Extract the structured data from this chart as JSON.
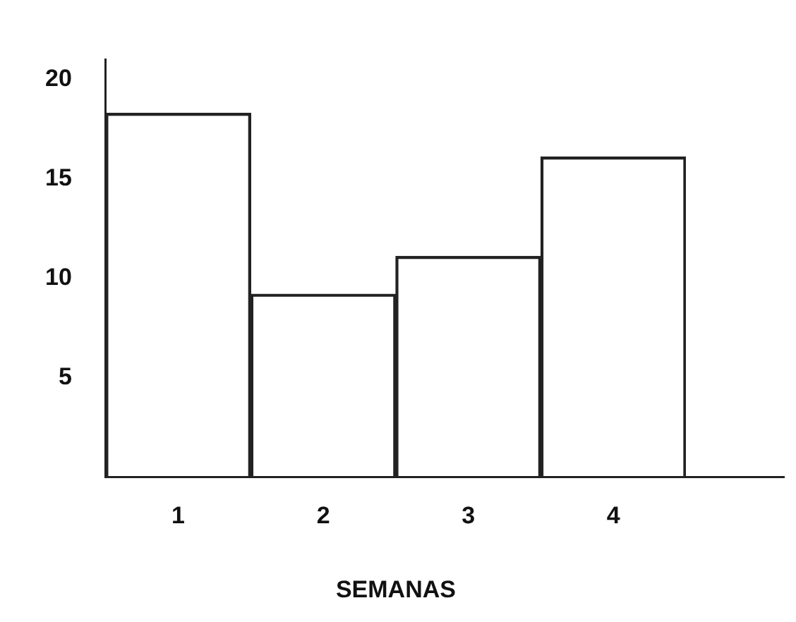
{
  "chart_data": {
    "type": "bar",
    "xlabel": "SEMANAS",
    "categories": [
      "1",
      "2",
      "3",
      "4"
    ],
    "series": [
      {
        "color": "#222222",
        "values": [
          18.3,
          9.2,
          11.1,
          16.1
        ]
      }
    ],
    "ylim": [
      0,
      21
    ],
    "yticks": [
      5,
      10,
      15,
      20
    ],
    "grid": false,
    "legend": false
  }
}
